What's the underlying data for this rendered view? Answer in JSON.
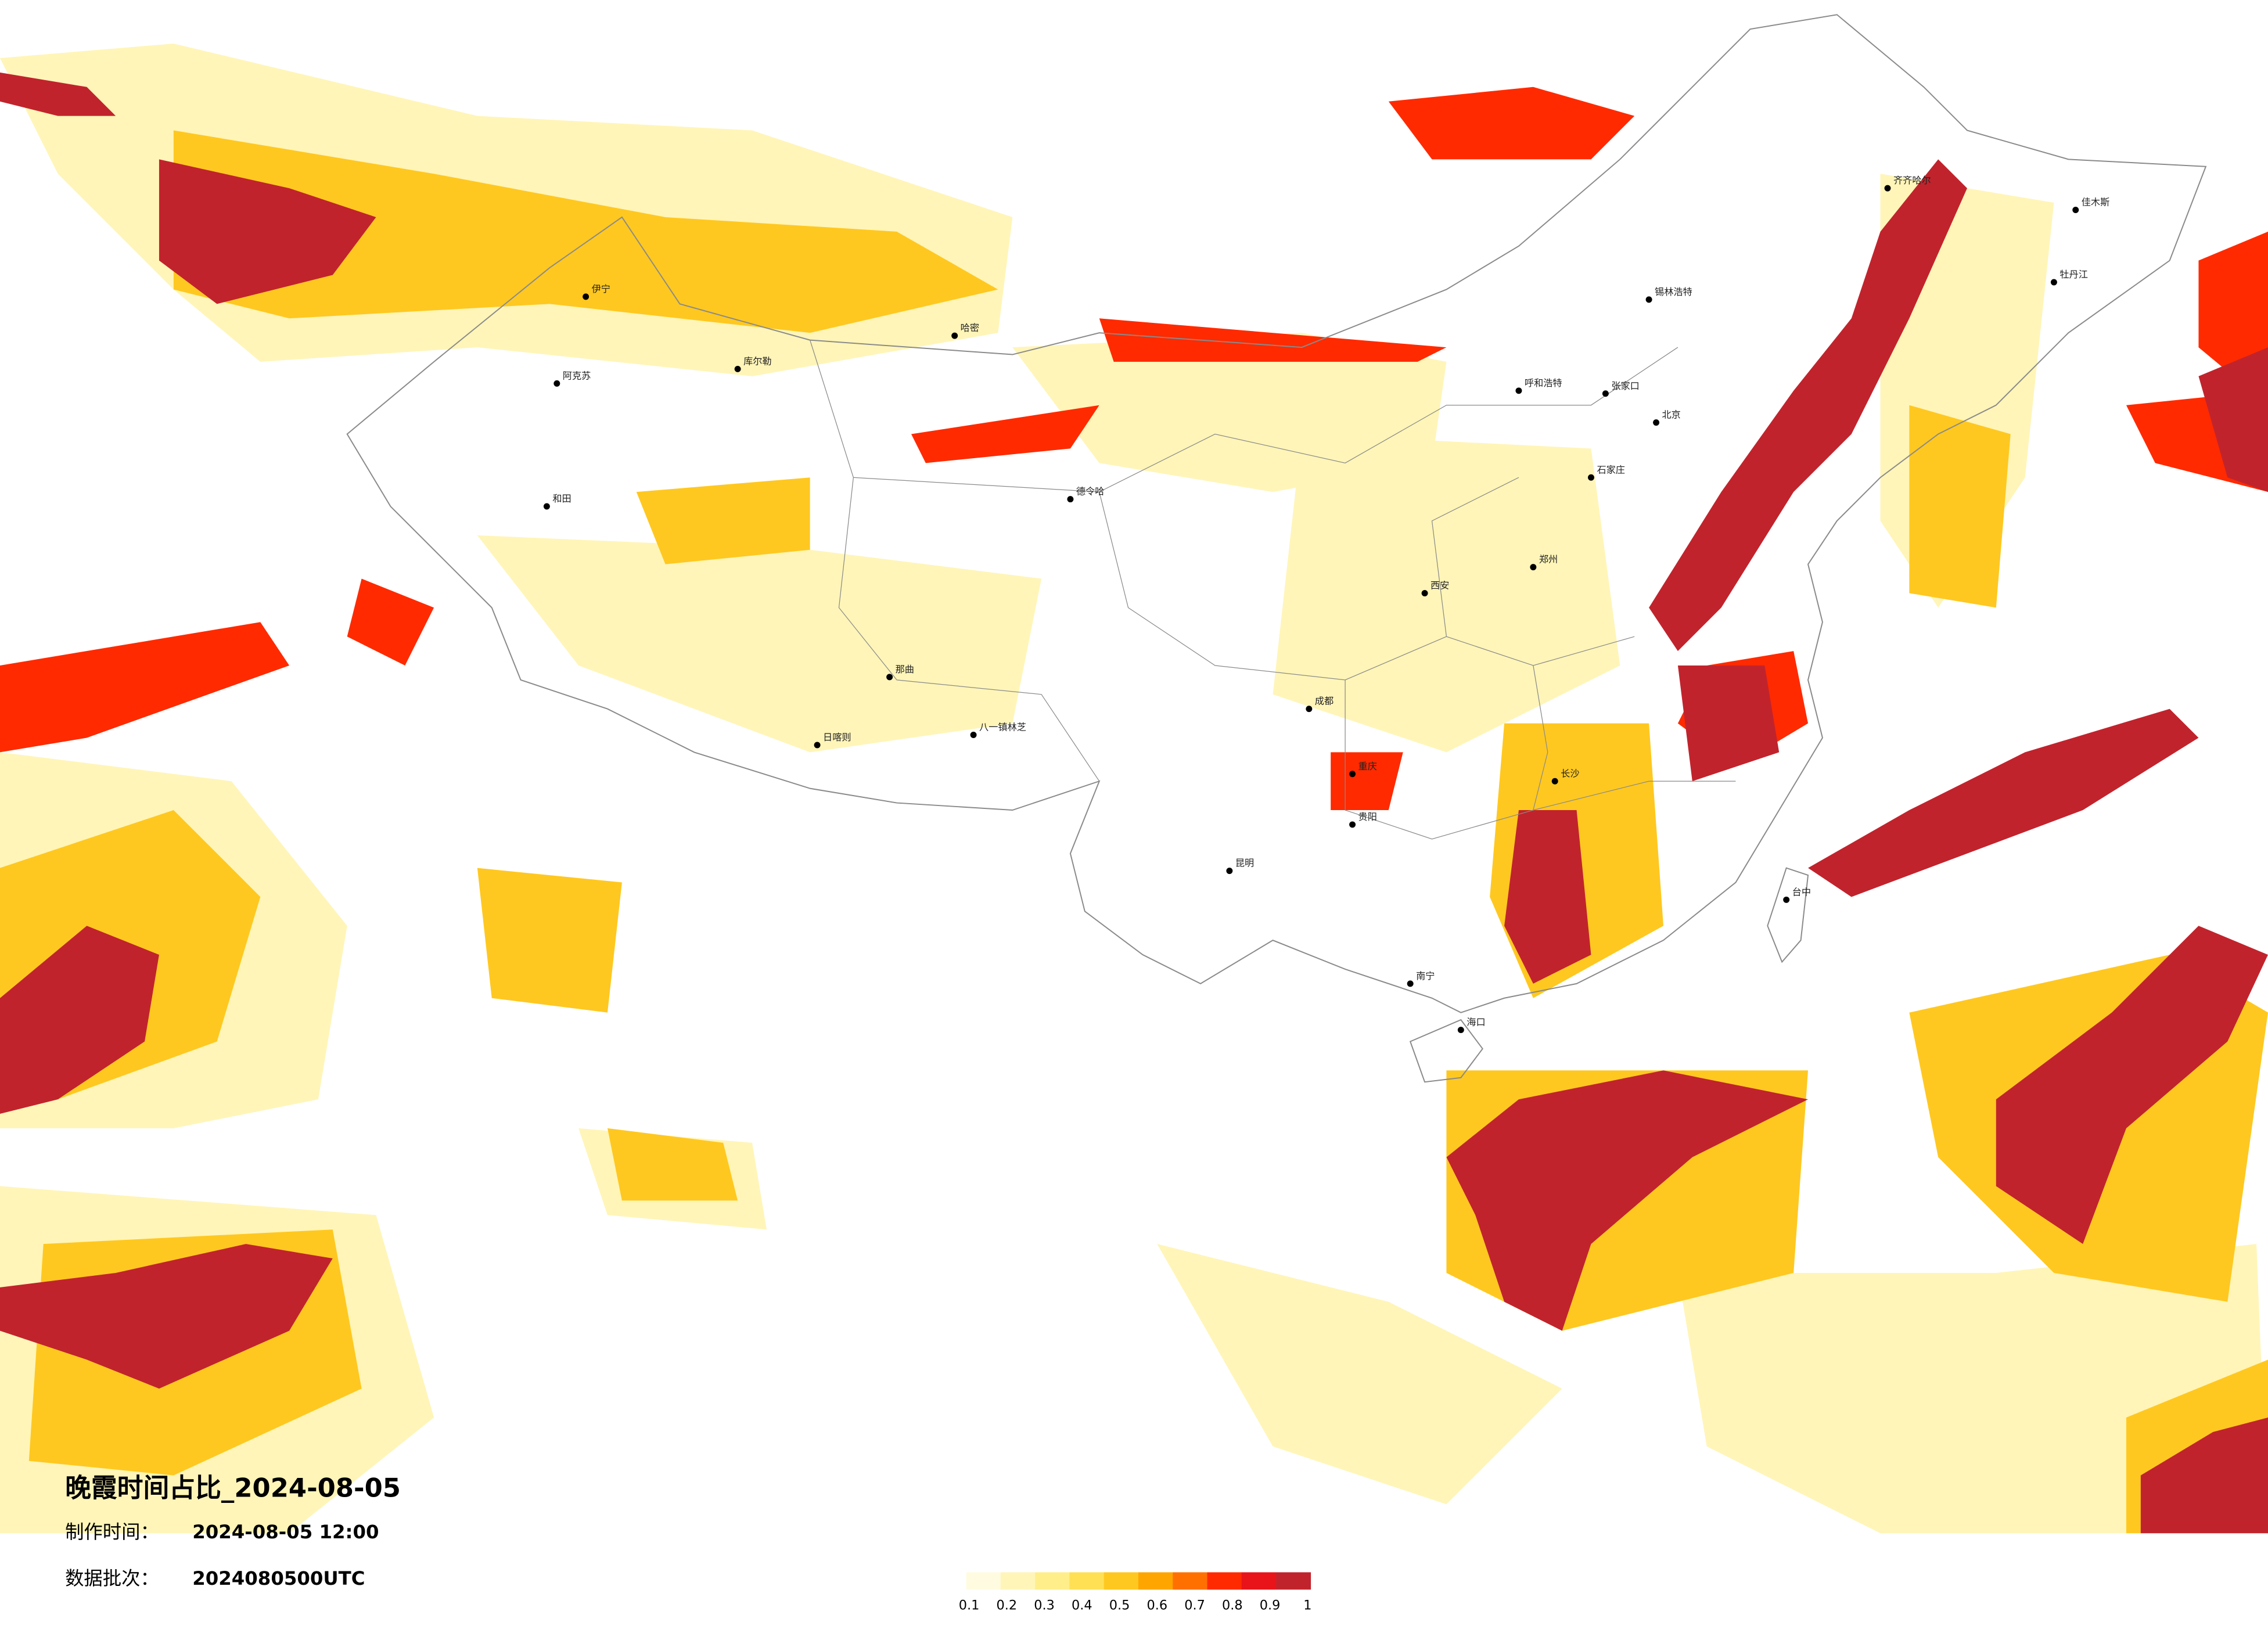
{
  "title": "晚霞时间占比_2024-08-05",
  "made_time_label": "制作时间：",
  "made_time": "2024-08-05 12:00",
  "batch_label": "数据批次：",
  "batch": "2024080500UTC",
  "colorbar": {
    "ticks": [
      0.1,
      0.2,
      0.3,
      0.4,
      0.5,
      0.6,
      0.7,
      0.8,
      0.9,
      1
    ],
    "colors": [
      "#fffbe0",
      "#fff5b8",
      "#ffee8a",
      "#ffe055",
      "#ffc820",
      "#ffa500",
      "#ff7000",
      "#ff2a00",
      "#e8141a",
      "#c1232c"
    ]
  },
  "cities": [
    "伊宁",
    "阿克苏",
    "和田",
    "库尔勒",
    "哈密",
    "德令哈",
    "那曲",
    "日喀则",
    "八一镇林芝",
    "呼和浩特",
    "锡林浩特",
    "张家口",
    "北京",
    "石家庄",
    "郑州",
    "西安",
    "成都",
    "重庆",
    "贵阳",
    "昆明",
    "南宁",
    "海口",
    "长沙",
    "齐齐哈尔",
    "佳木斯",
    "牡丹江",
    "台中"
  ]
}
